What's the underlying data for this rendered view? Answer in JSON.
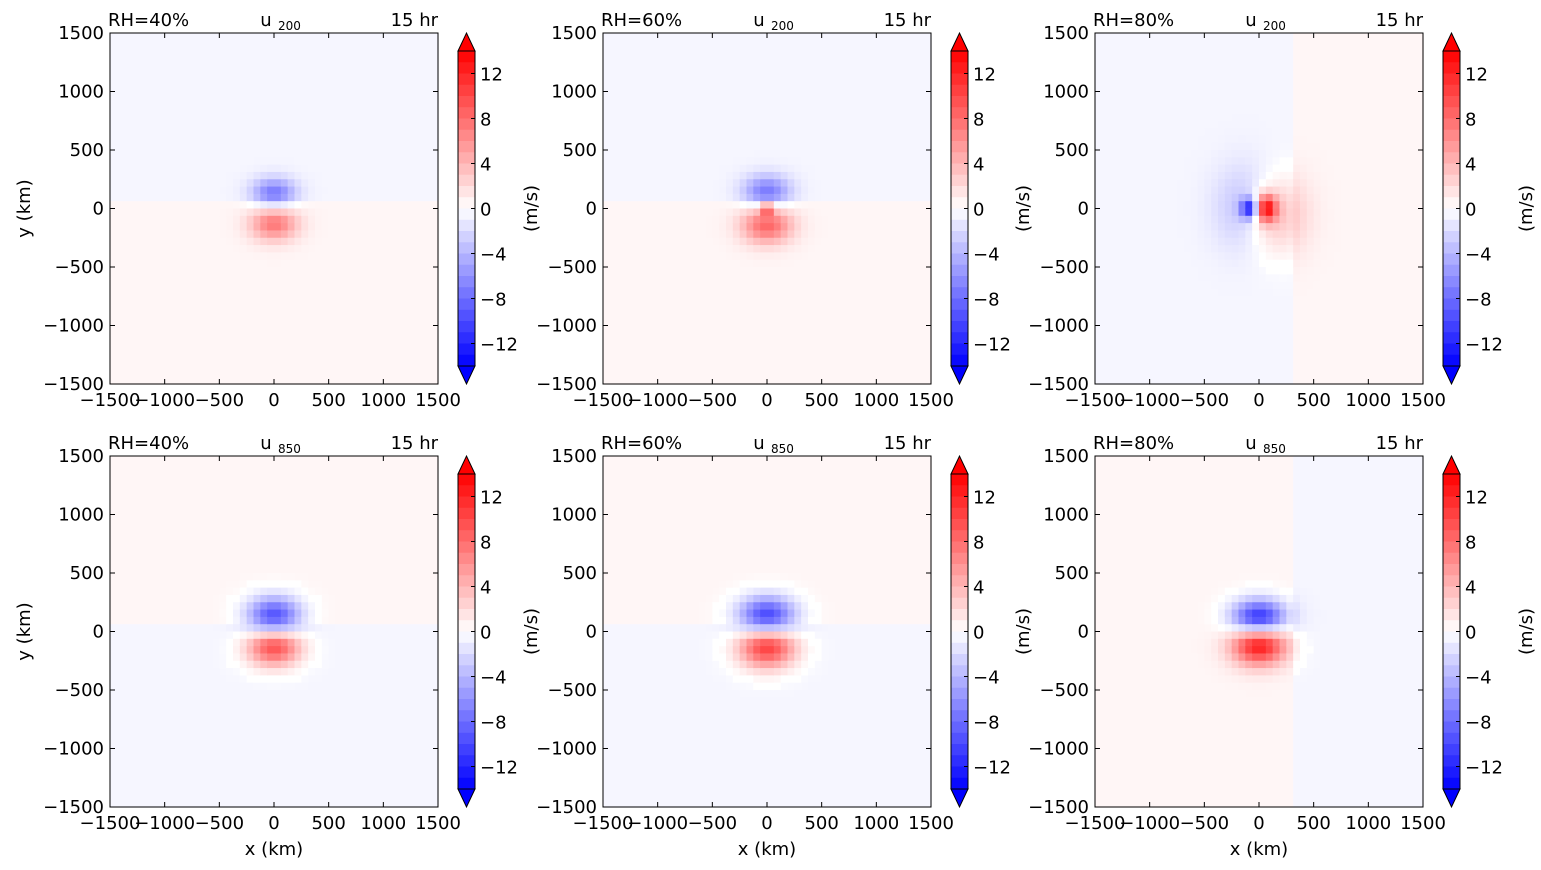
{
  "figure": {
    "panel_count": 6,
    "colorbar": {
      "tick_labels": [
        "12",
        "8",
        "4",
        "0",
        "−4",
        "−8",
        "−12"
      ],
      "tick_values": [
        12,
        8,
        4,
        0,
        -4,
        -8,
        -12
      ],
      "range": [
        -14,
        14
      ],
      "extend": "both",
      "levels": 28,
      "label": "(m/s)",
      "colormap": "bwr",
      "colors": {
        "negative": "#0000ff",
        "zero": "#ffffff",
        "positive": "#ff0000"
      }
    }
  },
  "chart_data": [
    {
      "type": "heatmap",
      "title_left": "RH=40%",
      "title_center": "u",
      "title_sub": "200",
      "title_right": "15 hr",
      "xlabel": "",
      "ylabel": "y (km)",
      "xlim": [
        -1500,
        1500
      ],
      "ylim": [
        -1500,
        1500
      ],
      "xticks": [
        -1500,
        -1000,
        -500,
        0,
        500,
        1000,
        1500
      ],
      "yticks": [
        1500,
        1000,
        500,
        0,
        -500,
        -1000,
        -1500
      ],
      "xtick_labels": [
        "−1500",
        "−1000",
        "−500",
        "0",
        "500",
        "1000",
        "1500"
      ],
      "ytick_labels": [
        "1500",
        "1000",
        "500",
        "0",
        "−500",
        "−1000",
        "−1500"
      ],
      "colorbar_label": "",
      "background": [
        {
          "region": "north",
          "value": -0.5
        },
        {
          "region": "south",
          "value": 0.5
        }
      ],
      "features": [
        {
          "x": 0,
          "y": 130,
          "amplitude": -7,
          "sigma_x": 140,
          "sigma_y": 90
        },
        {
          "x": 0,
          "y": -130,
          "amplitude": 7,
          "sigma_x": 150,
          "sigma_y": 100
        }
      ]
    },
    {
      "type": "heatmap",
      "title_left": "RH=60%",
      "title_center": "u",
      "title_sub": "200",
      "title_right": "15 hr",
      "xlabel": "",
      "ylabel": "",
      "xlim": [
        -1500,
        1500
      ],
      "ylim": [
        -1500,
        1500
      ],
      "xticks": [
        -1500,
        -1000,
        -500,
        0,
        500,
        1000,
        1500
      ],
      "yticks": [
        1500,
        1000,
        500,
        0,
        -500,
        -1000,
        -1500
      ],
      "xtick_labels": [
        "−1500",
        "−1000",
        "−500",
        "0",
        "500",
        "1000",
        "1500"
      ],
      "ytick_labels": [
        "1500",
        "1000",
        "500",
        "0",
        "−500",
        "−1000",
        "−1500"
      ],
      "colorbar_label": "(m/s)",
      "background": [
        {
          "region": "north",
          "value": -0.5
        },
        {
          "region": "south",
          "value": 0.5
        }
      ],
      "features": [
        {
          "x": 0,
          "y": 140,
          "amplitude": -7,
          "sigma_x": 150,
          "sigma_y": 100
        },
        {
          "x": 0,
          "y": -140,
          "amplitude": 8,
          "sigma_x": 160,
          "sigma_y": 110
        },
        {
          "x": 0,
          "y": 0,
          "amplitude": 10,
          "sigma_x": 40,
          "sigma_y": 30
        }
      ]
    },
    {
      "type": "heatmap",
      "title_left": "RH=80%",
      "title_center": "u",
      "title_sub": "200",
      "title_right": "15 hr",
      "xlabel": "",
      "ylabel": "",
      "xlim": [
        -1500,
        1500
      ],
      "ylim": [
        -1500,
        1500
      ],
      "xticks": [
        -1500,
        -1000,
        -500,
        0,
        500,
        1000,
        1500
      ],
      "yticks": [
        1500,
        1000,
        500,
        0,
        -500,
        -1000,
        -1500
      ],
      "xtick_labels": [
        "−1500",
        "−1000",
        "−500",
        "0",
        "500",
        "1000",
        "1500"
      ],
      "ytick_labels": [
        "1500",
        "1000",
        "500",
        "0",
        "−500",
        "−1000",
        "−1500"
      ],
      "colorbar_label": "(m/s)",
      "background": [
        {
          "region": "west",
          "value": -0.5
        },
        {
          "region": "east",
          "value": 0.5
        }
      ],
      "features": [
        {
          "x": -100,
          "y": 0,
          "amplitude": -4,
          "sigma_x": 200,
          "sigma_y": 250
        },
        {
          "x": 120,
          "y": -50,
          "amplitude": 5,
          "sigma_x": 200,
          "sigma_y": 230
        },
        {
          "x": -80,
          "y": 0,
          "amplitude": -12,
          "sigma_x": 60,
          "sigma_y": 60
        },
        {
          "x": 60,
          "y": 0,
          "amplitude": 13,
          "sigma_x": 70,
          "sigma_y": 80
        }
      ]
    },
    {
      "type": "heatmap",
      "title_left": "RH=40%",
      "title_center": "u",
      "title_sub": "850",
      "title_right": "15 hr",
      "xlabel": "x (km)",
      "ylabel": "y (km)",
      "xlim": [
        -1500,
        1500
      ],
      "ylim": [
        -1500,
        1500
      ],
      "xticks": [
        -1500,
        -1000,
        -500,
        0,
        500,
        1000,
        1500
      ],
      "yticks": [
        1500,
        1000,
        500,
        0,
        -500,
        -1000,
        -1500
      ],
      "xtick_labels": [
        "−1500",
        "−1000",
        "−500",
        "0",
        "500",
        "1000",
        "1500"
      ],
      "ytick_labels": [
        "1500",
        "1000",
        "500",
        "0",
        "−500",
        "−1000",
        "−1500"
      ],
      "colorbar_label": "",
      "background": [
        {
          "region": "north",
          "value": 0.5
        },
        {
          "region": "south",
          "value": -0.5
        }
      ],
      "features": [
        {
          "x": 0,
          "y": 120,
          "amplitude": -11,
          "sigma_x": 170,
          "sigma_y": 120
        },
        {
          "x": 0,
          "y": -120,
          "amplitude": 11,
          "sigma_x": 170,
          "sigma_y": 120
        }
      ]
    },
    {
      "type": "heatmap",
      "title_left": "RH=60%",
      "title_center": "u",
      "title_sub": "850",
      "title_right": "15 hr",
      "xlabel": "x (km)",
      "ylabel": "",
      "xlim": [
        -1500,
        1500
      ],
      "ylim": [
        -1500,
        1500
      ],
      "xticks": [
        -1500,
        -1000,
        -500,
        0,
        500,
        1000,
        1500
      ],
      "yticks": [
        1500,
        1000,
        500,
        0,
        -500,
        -1000,
        -1500
      ],
      "xtick_labels": [
        "−1500",
        "−1000",
        "−500",
        "0",
        "500",
        "1000",
        "1500"
      ],
      "ytick_labels": [
        "1500",
        "1000",
        "500",
        "0",
        "−500",
        "−1000",
        "−1500"
      ],
      "colorbar_label": "(m/s)",
      "background": [
        {
          "region": "north",
          "value": 0.5
        },
        {
          "region": "south",
          "value": -0.5
        }
      ],
      "features": [
        {
          "x": 0,
          "y": 120,
          "amplitude": -12,
          "sigma_x": 180,
          "sigma_y": 120
        },
        {
          "x": 0,
          "y": -120,
          "amplitude": 12,
          "sigma_x": 180,
          "sigma_y": 130
        }
      ]
    },
    {
      "type": "heatmap",
      "title_left": "RH=80%",
      "title_center": "u",
      "title_sub": "850",
      "title_right": "15 hr",
      "xlabel": "x (km)",
      "ylabel": "",
      "xlim": [
        -1500,
        1500
      ],
      "ylim": [
        -1500,
        1500
      ],
      "xticks": [
        -1500,
        -1000,
        -500,
        0,
        500,
        1000,
        1500
      ],
      "yticks": [
        1500,
        1000,
        500,
        0,
        -500,
        -1000,
        -1500
      ],
      "xtick_labels": [
        "−1500",
        "−1000",
        "−500",
        "0",
        "500",
        "1000",
        "1500"
      ],
      "ytick_labels": [
        "1500",
        "1000",
        "500",
        "0",
        "−500",
        "−1000",
        "−1500"
      ],
      "colorbar_label": "(m/s)",
      "background": [
        {
          "region": "west",
          "value": 0.5
        },
        {
          "region": "east",
          "value": -0.5
        }
      ],
      "features": [
        {
          "x": 0,
          "y": 110,
          "amplitude": -13,
          "sigma_x": 170,
          "sigma_y": 110
        },
        {
          "x": 0,
          "y": -110,
          "amplitude": 13,
          "sigma_x": 170,
          "sigma_y": 120
        }
      ]
    }
  ]
}
